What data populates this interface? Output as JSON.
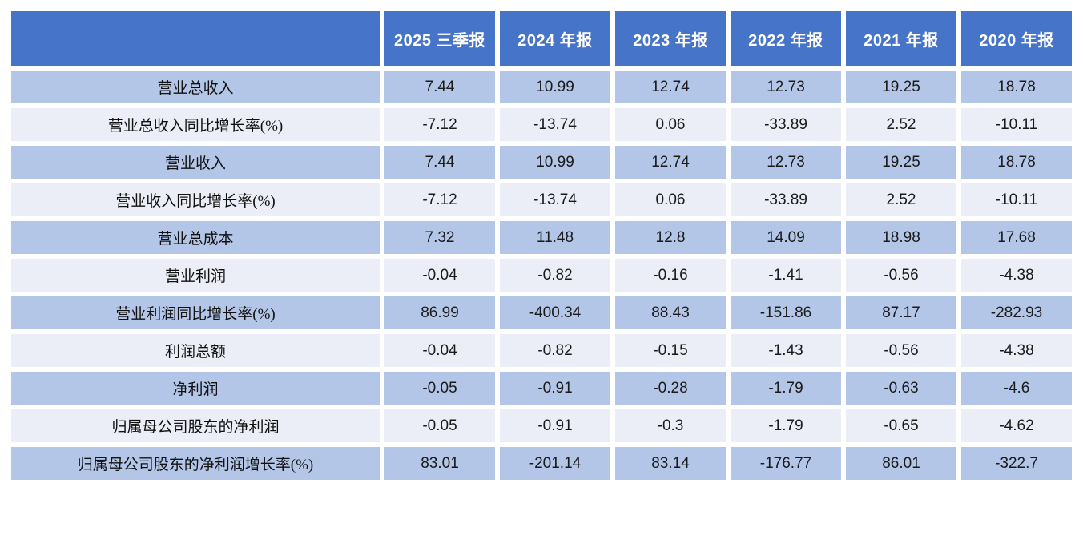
{
  "colors": {
    "header_bg": "#4674c8",
    "header_text": "#ffffff",
    "band_blue": "#b4c6e7",
    "band_light": "#ebeef6",
    "cell_text": "#1a1a1a",
    "gap": "#ffffff"
  },
  "chart_data": {
    "type": "table",
    "title": "",
    "columns": [
      "",
      "2025 三季报",
      "2024 年报",
      "2023 年报",
      "2022 年报",
      "2021 年报",
      "2020 年报"
    ],
    "rows": [
      {
        "label": "营业总收入",
        "values": [
          "7.44",
          "10.99",
          "12.74",
          "12.73",
          "19.25",
          "18.78"
        ]
      },
      {
        "label": "营业总收入同比增长率(%)",
        "values": [
          "-7.12",
          "-13.74",
          "0.06",
          "-33.89",
          "2.52",
          "-10.11"
        ]
      },
      {
        "label": "营业收入",
        "values": [
          "7.44",
          "10.99",
          "12.74",
          "12.73",
          "19.25",
          "18.78"
        ]
      },
      {
        "label": "营业收入同比增长率(%)",
        "values": [
          "-7.12",
          "-13.74",
          "0.06",
          "-33.89",
          "2.52",
          "-10.11"
        ]
      },
      {
        "label": "营业总成本",
        "values": [
          "7.32",
          "11.48",
          "12.8",
          "14.09",
          "18.98",
          "17.68"
        ]
      },
      {
        "label": "营业利润",
        "values": [
          "-0.04",
          "-0.82",
          "-0.16",
          "-1.41",
          "-0.56",
          "-4.38"
        ]
      },
      {
        "label": "营业利润同比增长率(%)",
        "values": [
          "86.99",
          "-400.34",
          "88.43",
          "-151.86",
          "87.17",
          "-282.93"
        ]
      },
      {
        "label": "利润总额",
        "values": [
          "-0.04",
          "-0.82",
          "-0.15",
          "-1.43",
          "-0.56",
          "-4.38"
        ]
      },
      {
        "label": "净利润",
        "values": [
          "-0.05",
          "-0.91",
          "-0.28",
          "-1.79",
          "-0.63",
          "-4.6"
        ]
      },
      {
        "label": "归属母公司股东的净利润",
        "values": [
          "-0.05",
          "-0.91",
          "-0.3",
          "-1.79",
          "-0.65",
          "-4.62"
        ]
      },
      {
        "label": "归属母公司股东的净利润增长率(%)",
        "values": [
          "83.01",
          "-201.14",
          "83.14",
          "-176.77",
          "86.01",
          "-322.7"
        ]
      }
    ]
  }
}
